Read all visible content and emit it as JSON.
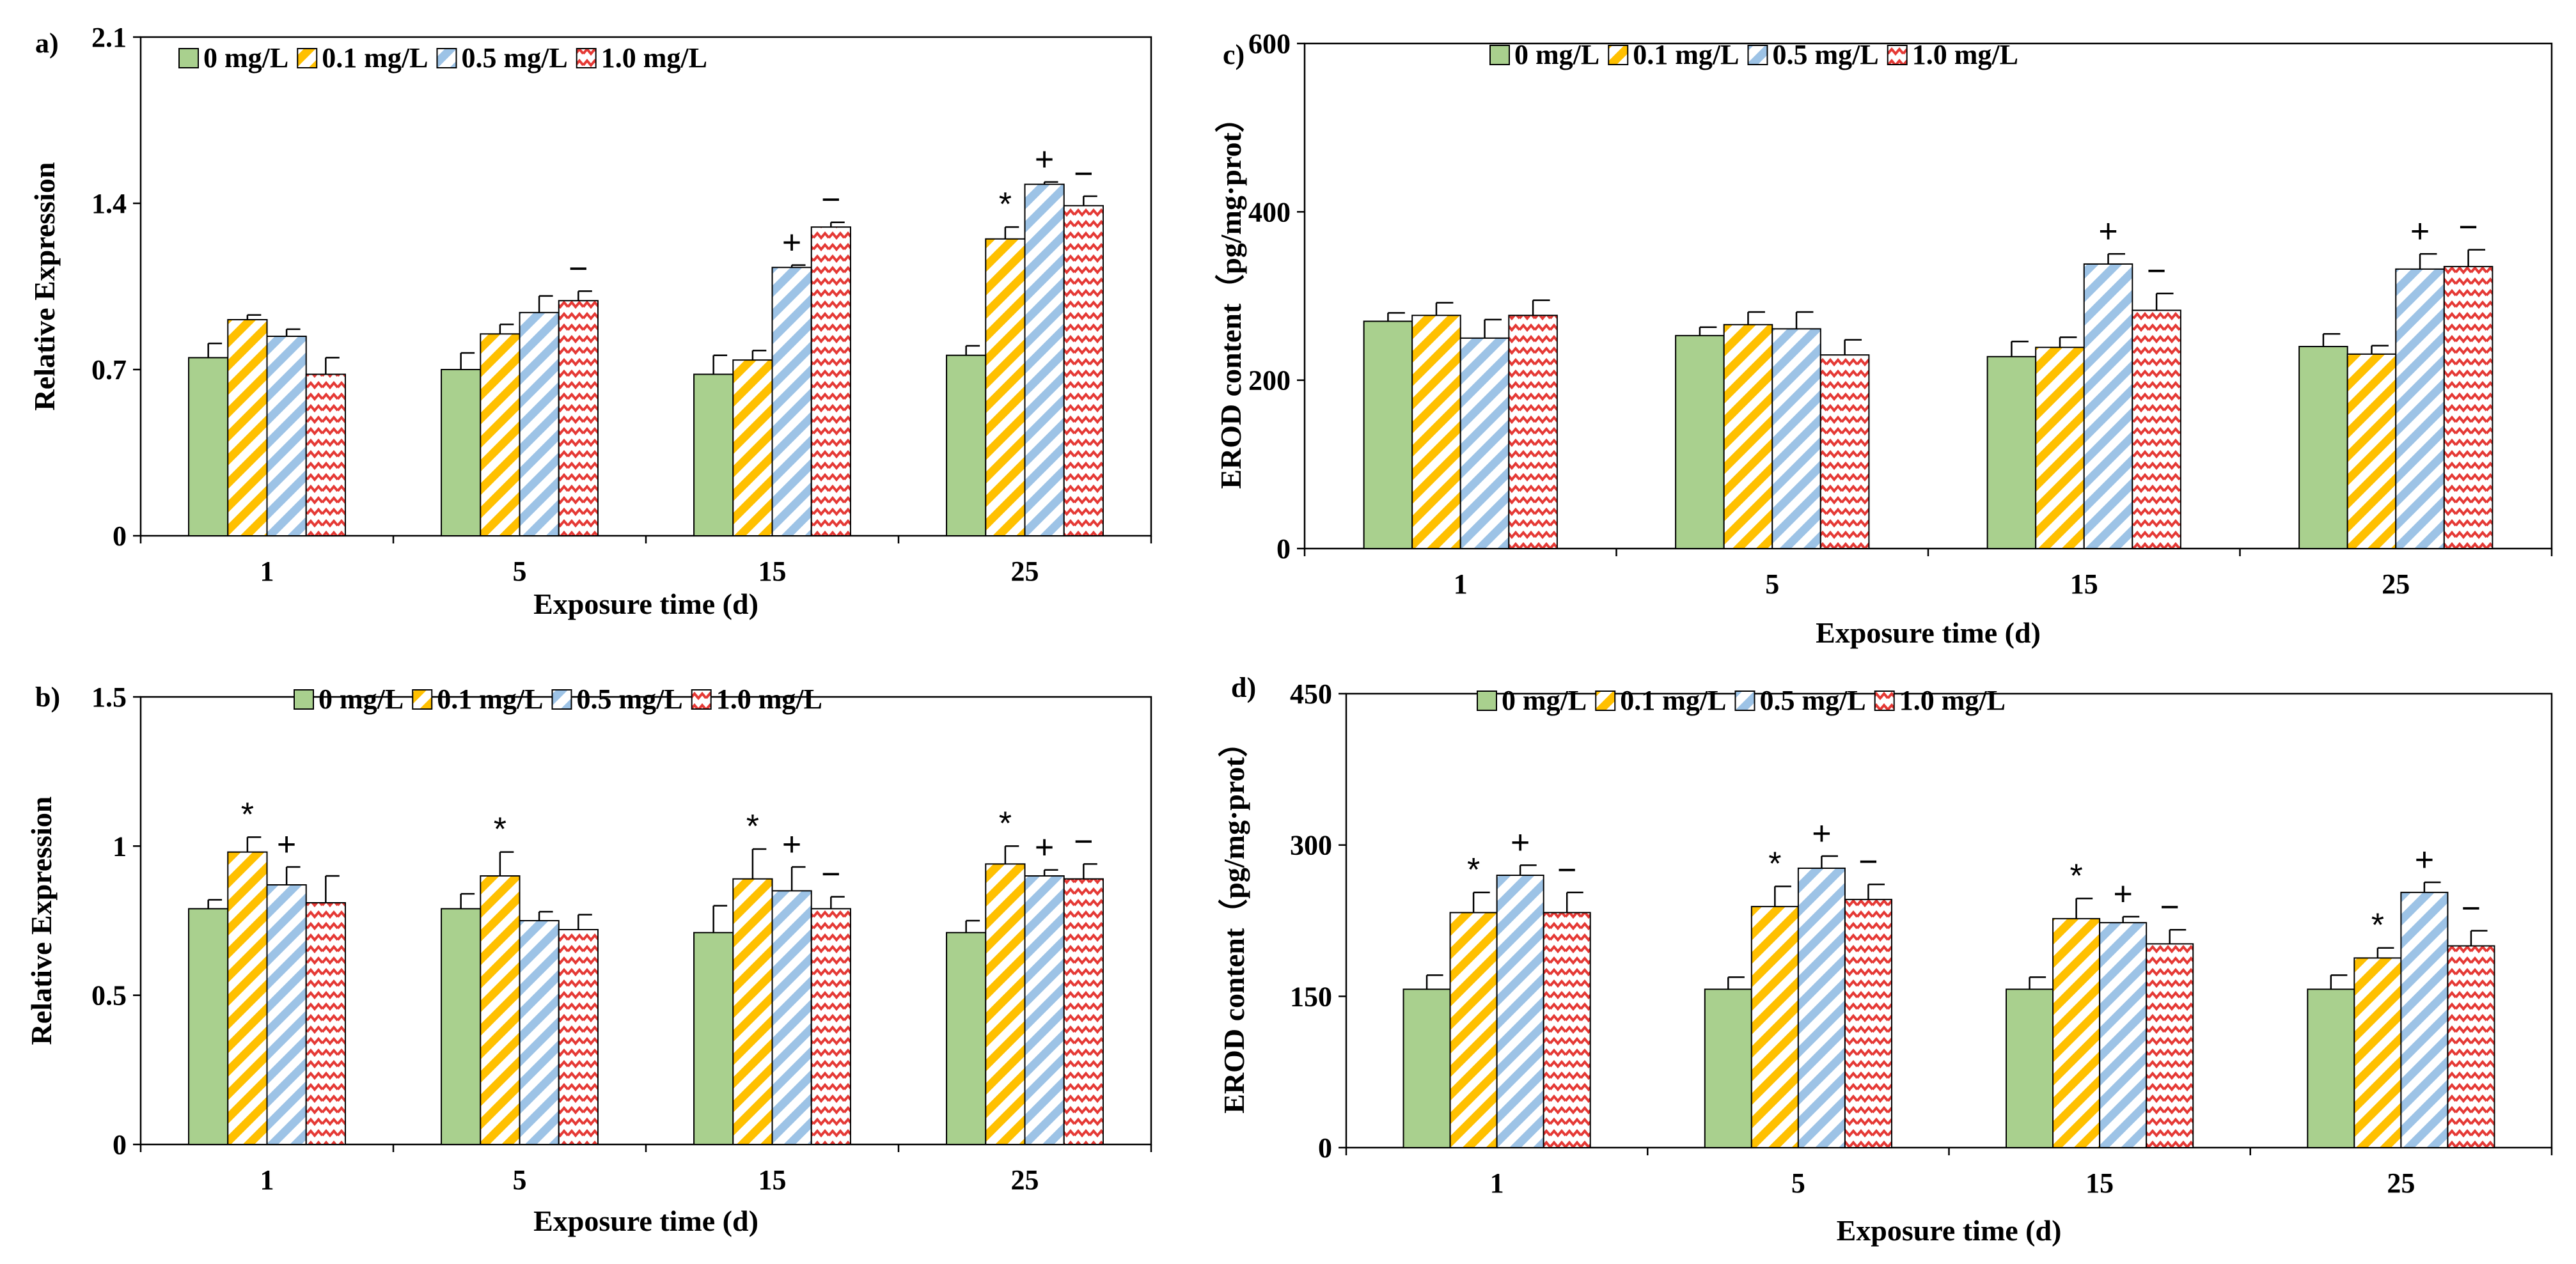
{
  "series_styles": [
    {
      "fill": "#a9d08e",
      "pattern": "solid",
      "stroke": "#000000"
    },
    {
      "fill": "#ffc000",
      "pattern": "stripes",
      "stroke": "#000000"
    },
    {
      "fill": "#9dc3e6",
      "pattern": "stripes-light",
      "stroke": "#000000"
    },
    {
      "fill": "#e53935",
      "pattern": "zigzag",
      "stroke": "#000000"
    }
  ],
  "chart_data": [
    {
      "panel_label": "a)",
      "type": "bar",
      "xlabel": "Exposure time (d)",
      "ylabel": "Relative Expression",
      "ylim": [
        0,
        2.1
      ],
      "yticks": [
        "0",
        "0.7",
        "1.4",
        "2.1"
      ],
      "categories": [
        "1",
        "5",
        "15",
        "25"
      ],
      "legend": [
        "0 mg/L",
        "0.1 mg/L",
        "0.5 mg/L",
        "1.0 mg/L"
      ],
      "series": [
        {
          "name": "0 mg/L",
          "values": [
            0.75,
            0.7,
            0.68,
            0.76
          ],
          "errors": [
            0.06,
            0.07,
            0.08,
            0.04
          ]
        },
        {
          "name": "0.1 mg/L",
          "values": [
            0.91,
            0.85,
            0.74,
            1.25
          ],
          "errors": [
            0.02,
            0.04,
            0.04,
            0.05
          ]
        },
        {
          "name": "0.5 mg/L",
          "values": [
            0.84,
            0.94,
            1.13,
            1.48
          ],
          "errors": [
            0.03,
            0.07,
            0.01,
            0.01
          ]
        },
        {
          "name": "1.0 mg/L",
          "values": [
            0.68,
            0.99,
            1.3,
            1.39
          ],
          "errors": [
            0.07,
            0.04,
            0.02,
            0.04
          ]
        }
      ],
      "markers": [
        {
          "category": 2,
          "series": 2,
          "symbol": "+"
        },
        {
          "category": 2,
          "series": 3,
          "symbol": "−"
        },
        {
          "category": 1,
          "series": 3,
          "symbol": "−"
        },
        {
          "category": 3,
          "series": 1,
          "symbol": "*"
        },
        {
          "category": 3,
          "series": 2,
          "symbol": "+"
        },
        {
          "category": 3,
          "series": 3,
          "symbol": "−"
        }
      ]
    },
    {
      "panel_label": "b)",
      "type": "bar",
      "xlabel": "Exposure time (d)",
      "ylabel": "Relative Expression",
      "ylim": [
        0,
        1.5
      ],
      "yticks": [
        "0",
        "0.5",
        "1",
        "1.5"
      ],
      "categories": [
        "1",
        "5",
        "15",
        "25"
      ],
      "legend": [
        "0 mg/L",
        "0.1 mg/L",
        "0.5 mg/L",
        "1.0 mg/L"
      ],
      "series": [
        {
          "name": "0 mg/L",
          "values": [
            0.79,
            0.79,
            0.71,
            0.71
          ],
          "errors": [
            0.03,
            0.05,
            0.09,
            0.04
          ]
        },
        {
          "name": "0.1 mg/L",
          "values": [
            0.98,
            0.9,
            0.89,
            0.94
          ],
          "errors": [
            0.05,
            0.08,
            0.1,
            0.06
          ]
        },
        {
          "name": "0.5 mg/L",
          "values": [
            0.87,
            0.75,
            0.85,
            0.9
          ],
          "errors": [
            0.06,
            0.03,
            0.08,
            0.02
          ]
        },
        {
          "name": "1.0 mg/L",
          "values": [
            0.81,
            0.72,
            0.79,
            0.89
          ],
          "errors": [
            0.09,
            0.05,
            0.04,
            0.05
          ]
        }
      ],
      "markers": [
        {
          "category": 0,
          "series": 1,
          "symbol": "*"
        },
        {
          "category": 0,
          "series": 2,
          "symbol": "+"
        },
        {
          "category": 1,
          "series": 1,
          "symbol": "*"
        },
        {
          "category": 2,
          "series": 1,
          "symbol": "*"
        },
        {
          "category": 2,
          "series": 2,
          "symbol": "+"
        },
        {
          "category": 2,
          "series": 3,
          "symbol": "−"
        },
        {
          "category": 3,
          "series": 1,
          "symbol": "*"
        },
        {
          "category": 3,
          "series": 2,
          "symbol": "+"
        },
        {
          "category": 3,
          "series": 3,
          "symbol": "−"
        }
      ]
    },
    {
      "panel_label": "c)",
      "type": "bar",
      "xlabel": "Exposure time (d)",
      "ylabel": "EROD content（pg/mg·prot）",
      "ylim": [
        0,
        600
      ],
      "yticks": [
        "0",
        "200",
        "400",
        "600"
      ],
      "categories": [
        "1",
        "5",
        "15",
        "25"
      ],
      "legend": [
        "0 mg/L",
        "0.1 mg/L",
        "0.5 mg/L",
        "1.0 mg/L"
      ],
      "series": [
        {
          "name": "0 mg/L",
          "values": [
            270,
            253,
            228,
            240
          ],
          "errors": [
            10,
            10,
            18,
            15
          ]
        },
        {
          "name": "0.1 mg/L",
          "values": [
            277,
            266,
            239,
            231
          ],
          "errors": [
            15,
            15,
            12,
            10
          ]
        },
        {
          "name": "0.5 mg/L",
          "values": [
            250,
            261,
            338,
            332
          ],
          "errors": [
            22,
            20,
            12,
            18
          ]
        },
        {
          "name": "1.0 mg/L",
          "values": [
            277,
            230,
            283,
            335
          ],
          "errors": [
            18,
            18,
            20,
            20
          ]
        }
      ],
      "markers": [
        {
          "category": 2,
          "series": 2,
          "symbol": "+"
        },
        {
          "category": 2,
          "series": 3,
          "symbol": "−"
        },
        {
          "category": 3,
          "series": 2,
          "symbol": "+"
        },
        {
          "category": 3,
          "series": 3,
          "symbol": "−"
        }
      ]
    },
    {
      "panel_label": "d)",
      "type": "bar",
      "xlabel": "Exposure time (d)",
      "ylabel": "EROD content（pg/mg·prot）",
      "ylim": [
        0,
        450
      ],
      "yticks": [
        "0",
        "150",
        "300",
        "450"
      ],
      "categories": [
        "1",
        "5",
        "15",
        "25"
      ],
      "legend": [
        "0 mg/L",
        "0.1 mg/L",
        "0.5 mg/L",
        "1.0 mg/L"
      ],
      "series": [
        {
          "name": "0 mg/L",
          "values": [
            157,
            157,
            157,
            157
          ],
          "errors": [
            14,
            12,
            12,
            14
          ]
        },
        {
          "name": "0.1 mg/L",
          "values": [
            233,
            239,
            227,
            188
          ],
          "errors": [
            20,
            20,
            20,
            10
          ]
        },
        {
          "name": "0.5 mg/L",
          "values": [
            270,
            277,
            223,
            253
          ],
          "errors": [
            10,
            12,
            6,
            10
          ]
        },
        {
          "name": "1.0 mg/L",
          "values": [
            233,
            246,
            202,
            200
          ],
          "errors": [
            20,
            15,
            14,
            15
          ]
        }
      ],
      "markers": [
        {
          "category": 0,
          "series": 1,
          "symbol": "*"
        },
        {
          "category": 0,
          "series": 2,
          "symbol": "+"
        },
        {
          "category": 0,
          "series": 3,
          "symbol": "−"
        },
        {
          "category": 1,
          "series": 1,
          "symbol": "*"
        },
        {
          "category": 1,
          "series": 2,
          "symbol": "+"
        },
        {
          "category": 1,
          "series": 3,
          "symbol": "−"
        },
        {
          "category": 2,
          "series": 1,
          "symbol": "*"
        },
        {
          "category": 2,
          "series": 2,
          "symbol": "+"
        },
        {
          "category": 2,
          "series": 3,
          "symbol": "−"
        },
        {
          "category": 3,
          "series": 1,
          "symbol": "*"
        },
        {
          "category": 3,
          "series": 2,
          "symbol": "+"
        },
        {
          "category": 3,
          "series": 3,
          "symbol": "−"
        }
      ]
    }
  ]
}
